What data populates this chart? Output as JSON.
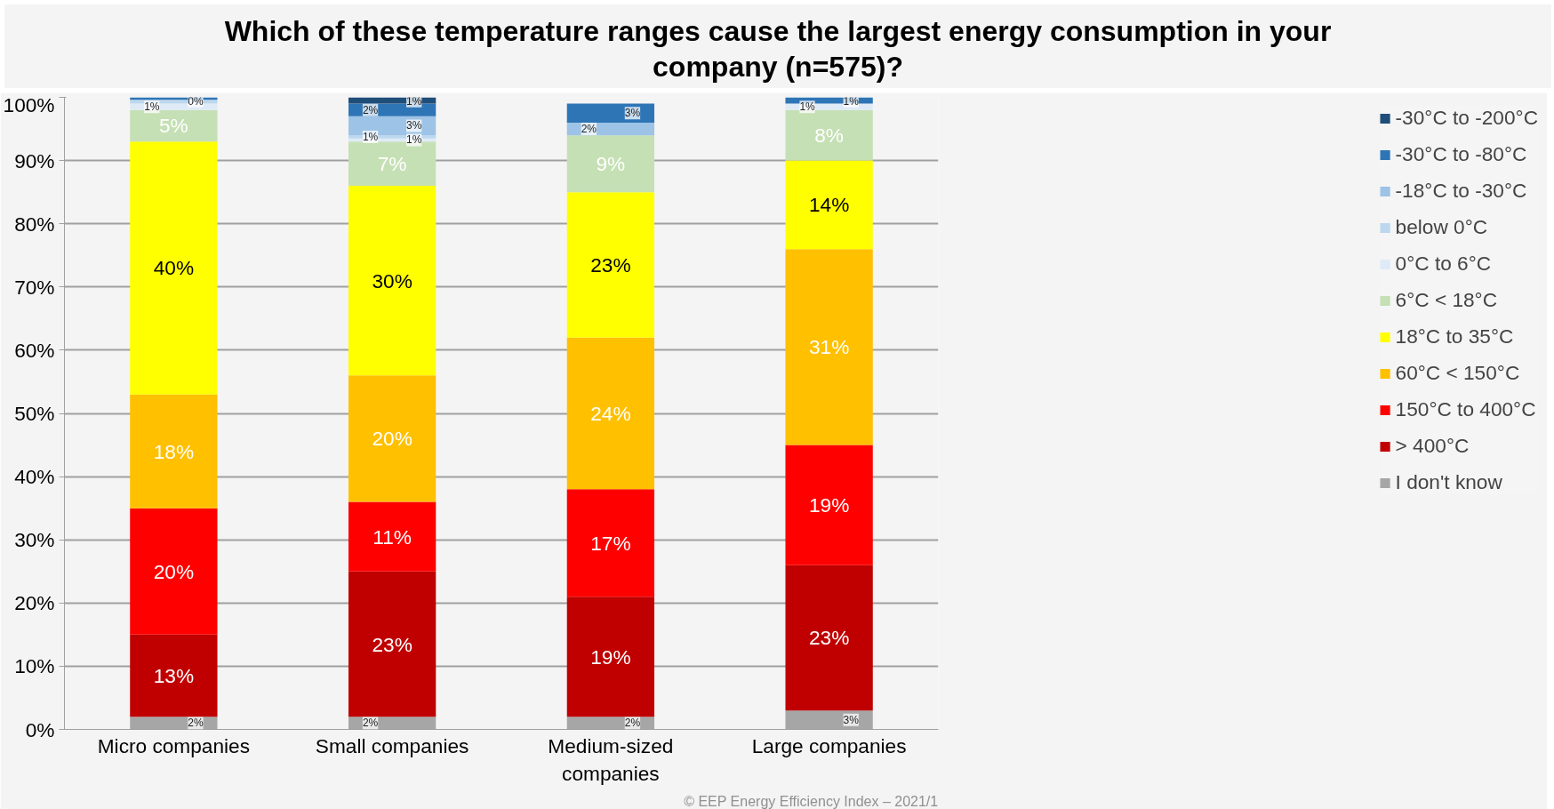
{
  "chart_data": {
    "type": "bar",
    "stacked": true,
    "title": "Which of these temperature ranges cause the largest energy consumption in your company (n=575)?",
    "categories": [
      "Micro companies",
      "Small companies",
      "Medium-sized companies",
      "Large companies"
    ],
    "series": [
      {
        "name": "I don't know",
        "color": "#a6a6a6",
        "values": [
          2,
          2,
          2,
          3
        ],
        "value_labels": [
          "2%",
          "2%",
          "2%",
          "3%"
        ]
      },
      {
        "name": "> 400°C",
        "color": "#c00000",
        "values": [
          13,
          23,
          19,
          23
        ],
        "value_labels": [
          "13%",
          "23%",
          "19%",
          "23%"
        ]
      },
      {
        "name": "150°C to 400°C",
        "color": "#ff0000",
        "values": [
          20,
          11,
          17,
          19
        ],
        "value_labels": [
          "20%",
          "11%",
          "17%",
          "19%"
        ]
      },
      {
        "name": "60°C < 150°C",
        "color": "#ffc000",
        "values": [
          18,
          20,
          24,
          31
        ],
        "value_labels": [
          "18%",
          "20%",
          "24%",
          "31%"
        ]
      },
      {
        "name": "18°C to 35°C",
        "color": "#ffff00",
        "values": [
          40,
          30,
          23,
          14
        ],
        "value_labels": [
          "40%",
          "30%",
          "23%",
          "14%"
        ]
      },
      {
        "name": "6°C < 18°C",
        "color": "#c5e0b4",
        "values": [
          5,
          7,
          9,
          8
        ],
        "value_labels": [
          "5%",
          "7%",
          "9%",
          "8%"
        ]
      },
      {
        "name": "0°C to 6°C",
        "color": "#deebf7",
        "values": [
          1,
          0.5,
          0,
          1
        ],
        "value_labels": [
          "1%",
          "1%",
          null,
          "1%"
        ]
      },
      {
        "name": "below 0°C",
        "color": "#bdd7ee",
        "values": [
          0.6,
          0.5,
          0,
          0
        ],
        "value_labels": [
          null,
          "1%",
          null,
          null
        ]
      },
      {
        "name": "-18°C to -30°C",
        "color": "#9dc3e6",
        "values": [
          0,
          3,
          2,
          0
        ],
        "value_labels": [
          null,
          "3%",
          "2%",
          null
        ]
      },
      {
        "name": "-30°C to -80°C",
        "color": "#2e75b6",
        "values": [
          0.4,
          2,
          3,
          1
        ],
        "value_labels": [
          "0%",
          "2%",
          "3%",
          "1%"
        ]
      },
      {
        "name": "-30°C to -200°C",
        "color": "#1f4e79",
        "values": [
          0,
          1,
          0,
          0
        ],
        "value_labels": [
          null,
          "1%",
          null,
          null
        ]
      }
    ],
    "ylim": [
      0,
      100
    ],
    "yticks": [
      {
        "value": 0,
        "label": "0%"
      },
      {
        "value": 10,
        "label": "10%"
      },
      {
        "value": 20,
        "label": "20%"
      },
      {
        "value": 30,
        "label": "30%"
      },
      {
        "value": 40,
        "label": "40%"
      },
      {
        "value": 50,
        "label": "50%"
      },
      {
        "value": 60,
        "label": "60%"
      },
      {
        "value": 70,
        "label": "70%"
      },
      {
        "value": 80,
        "label": "80%"
      },
      {
        "value": 90,
        "label": "90%"
      },
      {
        "value": 100,
        "label": "100%"
      }
    ],
    "grid": "y",
    "legend": "right",
    "annotations": [
      "© EEP Energy Efficiency Index – 2021/1"
    ]
  }
}
